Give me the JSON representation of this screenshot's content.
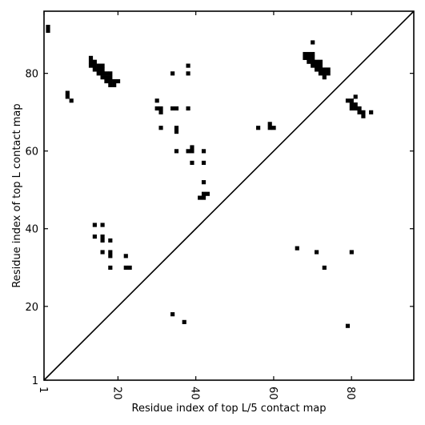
{
  "chart_data": {
    "type": "scatter",
    "title": "",
    "xlabel": "Residue index of top L/5 contact map",
    "ylabel": "Residue index of top L contact map",
    "xlim": [
      1,
      96
    ],
    "ylim": [
      1,
      96
    ],
    "x_ticks": [
      1,
      20,
      40,
      60,
      80
    ],
    "y_ticks": [
      1,
      20,
      40,
      60,
      80
    ],
    "x_tick_labels": [
      "1",
      "20",
      "40",
      "60",
      "80"
    ],
    "y_tick_labels": [
      "1",
      "20",
      "40",
      "60",
      "80"
    ],
    "diagonal_line": true,
    "grid": false,
    "marker": "square",
    "color": "#000000",
    "series": [
      {
        "values": [
          [
            2,
            91
          ],
          [
            2,
            92
          ],
          [
            7,
            74
          ],
          [
            7,
            75
          ],
          [
            8,
            73
          ],
          [
            13,
            82
          ],
          [
            13,
            83
          ],
          [
            13,
            84
          ],
          [
            14,
            81
          ],
          [
            14,
            82
          ],
          [
            14,
            83
          ],
          [
            15,
            80
          ],
          [
            15,
            81
          ],
          [
            15,
            82
          ],
          [
            16,
            79
          ],
          [
            16,
            80
          ],
          [
            16,
            81
          ],
          [
            16,
            82
          ],
          [
            17,
            78
          ],
          [
            17,
            79
          ],
          [
            17,
            80
          ],
          [
            18,
            77
          ],
          [
            18,
            78
          ],
          [
            18,
            79
          ],
          [
            18,
            80
          ],
          [
            19,
            77
          ],
          [
            19,
            78
          ],
          [
            20,
            78
          ],
          [
            30,
            73
          ],
          [
            30,
            71
          ],
          [
            31,
            71
          ],
          [
            31,
            70
          ],
          [
            31,
            66
          ],
          [
            34,
            80
          ],
          [
            34,
            71
          ],
          [
            35,
            71
          ],
          [
            35,
            66
          ],
          [
            35,
            65
          ],
          [
            35,
            60
          ],
          [
            38,
            82
          ],
          [
            38,
            80
          ],
          [
            38,
            71
          ],
          [
            38,
            60
          ],
          [
            39,
            60
          ],
          [
            39,
            61
          ],
          [
            39,
            57
          ],
          [
            41,
            48
          ],
          [
            42,
            48
          ],
          [
            42,
            49
          ],
          [
            42,
            52
          ],
          [
            42,
            57
          ],
          [
            42,
            60
          ],
          [
            43,
            49
          ],
          [
            14,
            41
          ],
          [
            14,
            38
          ],
          [
            16,
            41
          ],
          [
            16,
            38
          ],
          [
            16,
            37
          ],
          [
            16,
            34
          ],
          [
            18,
            37
          ],
          [
            18,
            34
          ],
          [
            18,
            33
          ],
          [
            18,
            30
          ],
          [
            22,
            33
          ],
          [
            22,
            30
          ],
          [
            23,
            30
          ],
          [
            34,
            18
          ],
          [
            37,
            16
          ],
          [
            56,
            66
          ],
          [
            59,
            67
          ],
          [
            59,
            66
          ],
          [
            60,
            66
          ],
          [
            66,
            35
          ],
          [
            71,
            34
          ],
          [
            73,
            30
          ],
          [
            79,
            15
          ],
          [
            80,
            34
          ],
          [
            68,
            84
          ],
          [
            68,
            85
          ],
          [
            69,
            83
          ],
          [
            69,
            84
          ],
          [
            69,
            85
          ],
          [
            70,
            82
          ],
          [
            70,
            83
          ],
          [
            70,
            84
          ],
          [
            70,
            85
          ],
          [
            70,
            88
          ],
          [
            71,
            81
          ],
          [
            71,
            82
          ],
          [
            71,
            83
          ],
          [
            72,
            80
          ],
          [
            72,
            81
          ],
          [
            72,
            82
          ],
          [
            72,
            83
          ],
          [
            73,
            79
          ],
          [
            73,
            80
          ],
          [
            73,
            81
          ],
          [
            74,
            80
          ],
          [
            74,
            81
          ],
          [
            79,
            73
          ],
          [
            80,
            71
          ],
          [
            80,
            72
          ],
          [
            80,
            73
          ],
          [
            81,
            71
          ],
          [
            81,
            72
          ],
          [
            81,
            74
          ],
          [
            82,
            70
          ],
          [
            82,
            71
          ],
          [
            83,
            69
          ],
          [
            83,
            70
          ],
          [
            85,
            70
          ]
        ]
      }
    ]
  }
}
